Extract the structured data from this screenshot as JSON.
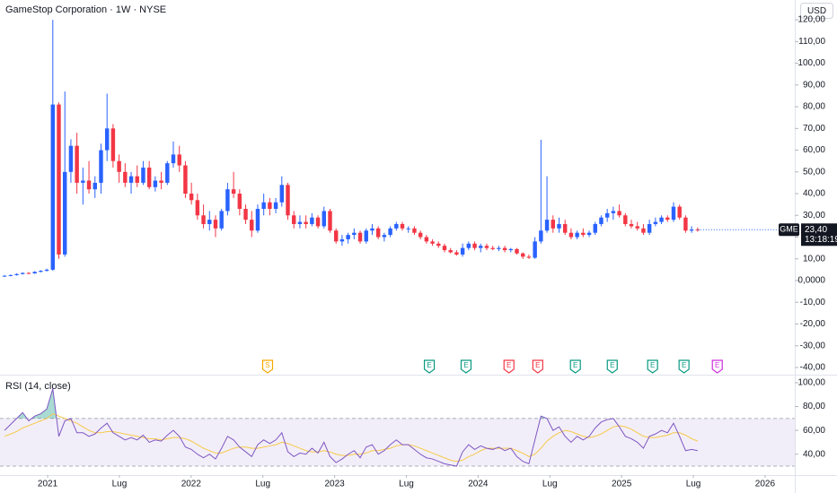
{
  "header": {
    "title": "GameStop Corporation · 1W · NYSE",
    "currency": "USD"
  },
  "chart_data": [
    {
      "type": "candlestick",
      "up_color": "#2962ff",
      "down_color": "#f23645",
      "x": [
        2020.7,
        2020.742,
        2020.784,
        2020.826,
        2020.868,
        2020.91,
        2020.952,
        2020.994,
        2021.036,
        2021.078,
        2021.12,
        2021.162,
        2021.204,
        2021.246,
        2021.288,
        2021.33,
        2021.372,
        2021.414,
        2021.456,
        2021.498,
        2021.54,
        2021.582,
        2021.624,
        2021.666,
        2021.708,
        2021.75,
        2021.792,
        2021.834,
        2021.876,
        2021.918,
        2021.96,
        2022.002,
        2022.044,
        2022.086,
        2022.128,
        2022.17,
        2022.212,
        2022.254,
        2022.296,
        2022.338,
        2022.38,
        2022.422,
        2022.464,
        2022.506,
        2022.548,
        2022.59,
        2022.632,
        2022.674,
        2022.716,
        2022.758,
        2022.8,
        2022.842,
        2022.884,
        2022.926,
        2022.968,
        2023.01,
        2023.052,
        2023.094,
        2023.136,
        2023.178,
        2023.22,
        2023.262,
        2023.304,
        2023.346,
        2023.388,
        2023.43,
        2023.472,
        2023.514,
        2023.556,
        2023.598,
        2023.64,
        2023.682,
        2023.724,
        2023.766,
        2023.808,
        2023.85,
        2023.892,
        2023.934,
        2023.976,
        2024.018,
        2024.06,
        2024.102,
        2024.144,
        2024.186,
        2024.228,
        2024.27,
        2024.312,
        2024.354,
        2024.396,
        2024.438,
        2024.48,
        2024.522,
        2024.564,
        2024.606,
        2024.648,
        2024.69,
        2024.732,
        2024.774,
        2024.816,
        2024.858,
        2024.9,
        2024.942,
        2024.984,
        2025.026,
        2025.068,
        2025.11,
        2025.152,
        2025.194,
        2025.236,
        2025.278,
        2025.32,
        2025.362,
        2025.404,
        2025.446,
        2025.488,
        2025.53
      ],
      "open": [
        2.0,
        2.2,
        2.5,
        3.0,
        3.5,
        3.3,
        4.0,
        4.5,
        5,
        81,
        12,
        50,
        62,
        45,
        46,
        42,
        45,
        60,
        70,
        55,
        50,
        45,
        48,
        45,
        52,
        43,
        46,
        45,
        54,
        58,
        53,
        40,
        37,
        30,
        26,
        28,
        24,
        32,
        42,
        40,
        33,
        28,
        23,
        33,
        36,
        33,
        36,
        44,
        30,
        26,
        27,
        26,
        29,
        25,
        32,
        23,
        18,
        19,
        21,
        22,
        18,
        23,
        24,
        20,
        21,
        24,
        26,
        24,
        24,
        22,
        20,
        18,
        17,
        16,
        14,
        13,
        12,
        15,
        17,
        15,
        16,
        15,
        14.5,
        15,
        14,
        14.5,
        12.5,
        11,
        10.5,
        18,
        23,
        28,
        24,
        26,
        22,
        20,
        22,
        21,
        22,
        26,
        29,
        31,
        32,
        30,
        26,
        25,
        24,
        22,
        26,
        27,
        29,
        28,
        34,
        29,
        23,
        23.5
      ],
      "high": [
        2.6,
        2.8,
        3.3,
        3.8,
        3.9,
        4.3,
        4.8,
        5.5,
        120,
        82,
        87,
        65,
        68,
        52,
        55,
        48,
        63,
        86,
        72,
        58,
        54,
        50,
        53,
        55,
        55,
        48,
        50,
        55,
        64,
        62,
        55,
        45,
        40,
        35,
        32,
        30,
        33,
        45,
        50,
        42,
        35,
        32,
        35,
        40,
        38,
        38,
        48,
        45,
        32,
        30,
        30,
        31,
        30,
        34,
        33,
        24,
        21,
        22,
        24,
        23,
        24,
        26,
        25,
        22,
        25,
        27,
        27,
        25,
        25,
        23,
        21,
        19,
        18,
        17,
        15,
        14,
        17,
        18,
        18,
        17,
        17,
        16,
        16,
        16,
        15,
        15,
        13,
        12,
        20,
        64.8,
        48,
        30,
        29,
        28,
        24,
        23,
        24,
        23,
        27,
        30,
        33,
        34,
        35,
        31,
        28,
        27,
        26,
        28,
        29,
        30,
        30,
        36,
        35,
        30,
        25,
        24.5
      ],
      "low": [
        1.8,
        2.0,
        2.3,
        2.8,
        3.0,
        3.1,
        3.8,
        4.2,
        4.5,
        10,
        11,
        45,
        40,
        35,
        40,
        38,
        40,
        55,
        52,
        45,
        43,
        40,
        43,
        44,
        42,
        41,
        42,
        44,
        52,
        50,
        38,
        35,
        28,
        24,
        23,
        20,
        23,
        30,
        38,
        30,
        26,
        20,
        22,
        30,
        30,
        31,
        34,
        28,
        24,
        24,
        24,
        25,
        24,
        24,
        22,
        17,
        16,
        17,
        19,
        17,
        17,
        21,
        19,
        18,
        20,
        23,
        23,
        22,
        21,
        19,
        17,
        16,
        15,
        13,
        12.5,
        11.5,
        11,
        14,
        14,
        13,
        14,
        14,
        13.5,
        13,
        13,
        12,
        10,
        10,
        10,
        17,
        22,
        22,
        22,
        21,
        19,
        19,
        20,
        20,
        21,
        25,
        27,
        28,
        29,
        25,
        24,
        23,
        21,
        21,
        25,
        26,
        27,
        27,
        28,
        22,
        22,
        22.5
      ],
      "close": [
        2.2,
        2.5,
        3.0,
        3.5,
        3.3,
        4.0,
        4.5,
        5,
        81,
        12,
        50,
        62,
        45,
        46,
        42,
        45,
        60,
        70,
        55,
        50,
        45,
        48,
        45,
        52,
        43,
        46,
        45,
        54,
        58,
        53,
        40,
        37,
        30,
        26,
        28,
        24,
        32,
        42,
        40,
        33,
        28,
        23,
        33,
        36,
        33,
        36,
        44,
        30,
        26,
        27,
        26,
        29,
        25,
        32,
        23,
        18,
        19,
        21,
        22,
        18,
        23,
        24,
        20,
        21,
        24,
        26,
        24,
        24,
        22,
        20,
        18,
        17,
        16,
        14,
        13,
        12,
        15,
        17,
        15,
        16,
        15,
        14.5,
        15,
        14,
        14.5,
        12.5,
        11,
        10.5,
        18,
        23,
        28,
        24,
        26,
        22,
        20,
        22,
        21,
        22,
        26,
        29,
        31,
        32,
        30,
        26,
        25,
        24,
        22,
        26,
        27,
        29,
        28,
        34,
        29,
        23,
        23.5,
        23.4
      ],
      "xlim": [
        2020.668,
        2026.207
      ],
      "xticks": [
        2021,
        {
          "value": 2021.5,
          "label": "Lug"
        },
        2022,
        {
          "value": 2022.5,
          "label": "Lug"
        },
        2023,
        {
          "value": 2023.5,
          "label": "Lug"
        },
        2024,
        {
          "value": 2024.5,
          "label": "Lug"
        },
        2025,
        {
          "value": 2025.5,
          "label": "Lug"
        },
        2026
      ],
      "ylim": [
        -43.3,
        129.1
      ],
      "yticks": [
        {
          "value": 120,
          "label": "120,00"
        },
        {
          "value": 110,
          "label": "110,00"
        },
        {
          "value": 100,
          "label": "100,00"
        },
        {
          "value": 90,
          "label": "90,00"
        },
        {
          "value": 80,
          "label": "80,00"
        },
        {
          "value": 70,
          "label": "70,00"
        },
        {
          "value": 60,
          "label": "60,00"
        },
        {
          "value": 50,
          "label": "50,00"
        },
        {
          "value": 40,
          "label": "40,00"
        },
        {
          "value": 30,
          "label": "30,00"
        },
        {
          "value": 20,
          "label": "20,00"
        },
        {
          "value": 10,
          "label": "10,00"
        },
        {
          "value": 0,
          "label": "0,0000"
        },
        {
          "value": -10,
          "label": "-10,00"
        },
        {
          "value": -20,
          "label": "-20,00"
        },
        {
          "value": -30,
          "label": "-30,00"
        },
        {
          "value": -40,
          "label": "-40,00"
        }
      ],
      "last_price": {
        "symbol": "GME",
        "value": 23.4,
        "label": "23,40",
        "countdown": "13:18:19"
      },
      "events": [
        {
          "x": 2022.533,
          "label": "S",
          "color": "#f7a600"
        },
        {
          "x": 2023.66,
          "label": "E",
          "color": "#089981"
        },
        {
          "x": 2023.916,
          "label": "E",
          "color": "#089981"
        },
        {
          "x": 2024.215,
          "label": "E",
          "color": "#f23645"
        },
        {
          "x": 2024.416,
          "label": "E",
          "color": "#f23645"
        },
        {
          "x": 2024.678,
          "label": "E",
          "color": "#089981"
        },
        {
          "x": 2024.935,
          "label": "E",
          "color": "#089981"
        },
        {
          "x": 2025.216,
          "label": "E",
          "color": "#089981"
        },
        {
          "x": 2025.435,
          "label": "E",
          "color": "#089981"
        },
        {
          "x": 2025.667,
          "label": "E",
          "color": "#cc2fdc"
        }
      ]
    },
    {
      "type": "line",
      "title": "RSI (14, close)",
      "ylim": [
        22.5,
        106
      ],
      "band": [
        30,
        70
      ],
      "grid": false,
      "yticks": [
        {
          "value": 100,
          "label": "100,00"
        },
        {
          "value": 80,
          "label": "80,00"
        },
        {
          "value": 60,
          "label": "60,00"
        },
        {
          "value": 40,
          "label": "40,00"
        }
      ],
      "series": [
        {
          "color": "#7e57c2",
          "values": [
            60,
            65,
            70,
            75,
            68,
            72,
            74,
            78,
            95,
            55,
            68,
            70,
            58,
            58,
            55,
            57,
            62,
            66,
            58,
            55,
            52,
            54,
            52,
            56,
            50,
            52,
            51,
            56,
            60,
            55,
            46,
            44,
            40,
            37,
            40,
            36,
            45,
            55,
            52,
            46,
            42,
            38,
            48,
            52,
            49,
            52,
            58,
            42,
            38,
            41,
            40,
            45,
            41,
            50,
            38,
            33,
            36,
            40,
            43,
            37,
            46,
            48,
            40,
            43,
            48,
            52,
            48,
            48,
            44,
            40,
            37,
            36,
            34,
            32,
            31,
            30,
            42,
            48,
            44,
            47,
            45,
            44,
            46,
            43,
            45,
            38,
            34,
            32,
            52,
            72,
            70,
            60,
            63,
            55,
            50,
            55,
            52,
            55,
            62,
            67,
            69,
            70,
            63,
            55,
            53,
            50,
            45,
            55,
            57,
            60,
            58,
            66,
            55,
            43,
            44,
            43
          ]
        },
        {
          "color": "#f7c948",
          "values": [
            55,
            57,
            59,
            62,
            64,
            66,
            68,
            70,
            74,
            72,
            70,
            68,
            66,
            63,
            60,
            58,
            58,
            59,
            59,
            58,
            57,
            56,
            55,
            54,
            53,
            53,
            52,
            53,
            54,
            54,
            53,
            51,
            48,
            45,
            43,
            41,
            41,
            43,
            45,
            46,
            46,
            45,
            45,
            46,
            47,
            48,
            50,
            49,
            47,
            45,
            43,
            42,
            42,
            43,
            42,
            40,
            39,
            39,
            40,
            40,
            41,
            43,
            43,
            44,
            45,
            47,
            48,
            48,
            47,
            45,
            43,
            41,
            39,
            37,
            35,
            34,
            35,
            38,
            40,
            43,
            45,
            45,
            45,
            45,
            45,
            43,
            41,
            38,
            40,
            45,
            51,
            55,
            58,
            60,
            59,
            57,
            55,
            54,
            55,
            57,
            60,
            63,
            64,
            63,
            61,
            58,
            55,
            54,
            54,
            55,
            56,
            58,
            58,
            56,
            53,
            51
          ]
        }
      ]
    }
  ]
}
